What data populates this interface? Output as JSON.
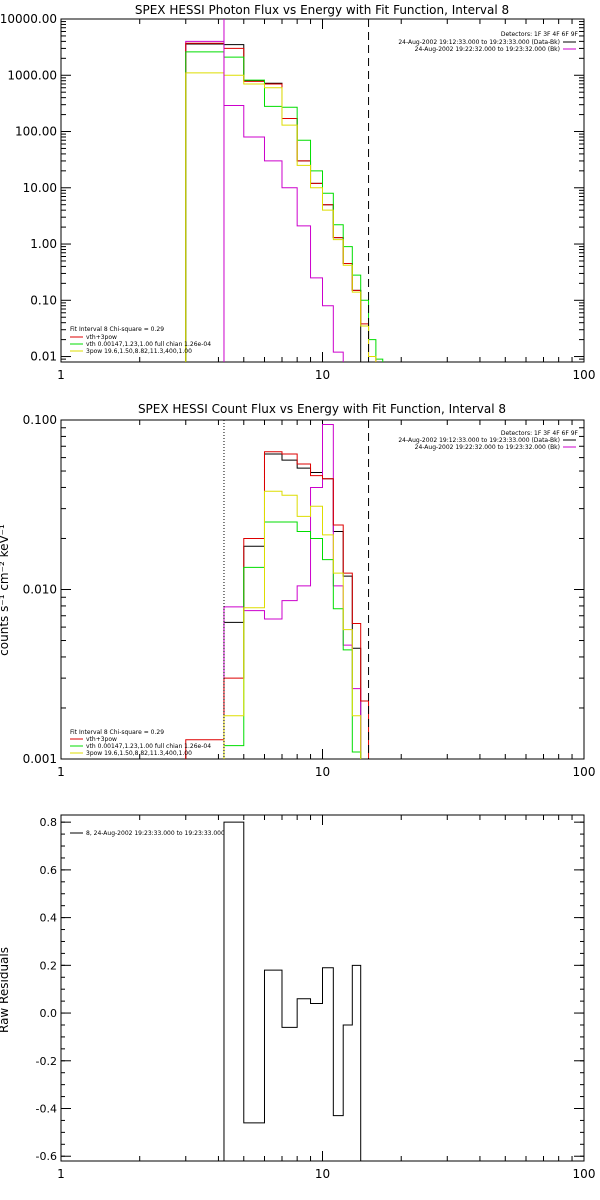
{
  "chart_data": [
    {
      "type": "line",
      "title": "SPEX HESSI Photon Flux vs Energy with Fit Function, Interval 8",
      "xlabel": "",
      "ylabel": "",
      "xscale": "log",
      "yscale": "log",
      "xlim": [
        1,
        100
      ],
      "ylim": [
        0.008,
        10000
      ],
      "xticks": [
        1,
        10,
        100
      ],
      "xticklabels": [
        "1",
        "10",
        "100"
      ],
      "yticks": [
        0.01,
        0.1,
        1,
        10,
        100,
        1000,
        10000
      ],
      "yticklabels": [
        "0.01",
        "0.10",
        "1.00",
        "10.00",
        "100.00",
        "1000.00",
        "10000.00"
      ],
      "vlines": [
        {
          "x": 4.2,
          "style": "solid",
          "color": "#cc00cc"
        },
        {
          "x": 15,
          "style": "dashed",
          "color": "#000000"
        }
      ],
      "legend_topright": [
        "Detectors: 1F 3F 4F 6F 9F",
        "24-Aug-2002 19:12:33.000 to 19:23:33.000 (Data-Bk)",
        "24-Aug-2002 19:22:32.000 to 19:23:32.000 (Bk)"
      ],
      "legend_topright_colors": [
        "",
        "#000000",
        "#cc00cc"
      ],
      "legend_bottomleft": [
        "Fit Interval 8   Chi-square = 0.29",
        "vth+3pow",
        "vth 0.00147,1.23,1.00  full chian 1.26e-04",
        "3pow 19.6,1.50,8.82,11.3,400,1.00"
      ],
      "legend_bottomleft_colors": [
        "",
        "#dd0000",
        "#00dd00",
        "#dddd00"
      ],
      "edges": [
        3,
        4.2,
        5,
        6,
        7,
        8,
        9,
        10,
        11,
        12,
        13,
        14,
        15,
        16,
        17
      ],
      "series": [
        {
          "color": "#000000",
          "values": [
            3600,
            3500,
            800,
            720,
            170,
            30,
            12,
            5,
            1.3,
            0.45,
            0.15
          ]
        },
        {
          "color": "#cc00cc",
          "values": [
            4000,
            290,
            80,
            30,
            10,
            2.1,
            0.25,
            0.08,
            0.012
          ]
        },
        {
          "color": "#dd0000",
          "values": [
            3700,
            3000,
            780,
            700,
            170,
            30,
            12,
            5,
            1.3,
            0.45,
            0.15,
            0.038,
            0.01
          ]
        },
        {
          "color": "#00dd00",
          "values": [
            2600,
            2100,
            820,
            280,
            270,
            70,
            20,
            8,
            2.2,
            0.9,
            0.28,
            0.1,
            0.02,
            0.009
          ]
        },
        {
          "color": "#dddd00",
          "values": [
            1100,
            1000,
            700,
            600,
            130,
            25,
            10,
            4,
            1.2,
            0.42,
            0.14,
            0.035,
            0.01
          ]
        }
      ]
    },
    {
      "type": "line",
      "title": "SPEX HESSI Count Flux vs Energy with Fit Function, Interval 8",
      "xlabel": "",
      "ylabel": "counts s⁻¹ cm⁻² keV⁻¹",
      "xscale": "log",
      "yscale": "log",
      "xlim": [
        1,
        100
      ],
      "ylim": [
        0.001,
        0.1
      ],
      "xticks": [
        1,
        10,
        100
      ],
      "xticklabels": [
        "1",
        "10",
        "100"
      ],
      "yticks": [
        0.001,
        0.01,
        0.1
      ],
      "yticklabels": [
        "0.001",
        "0.010",
        "0.100"
      ],
      "vlines": [
        {
          "x": 4.2,
          "style": "dotted",
          "color": "#000000"
        },
        {
          "x": 15,
          "style": "dashed",
          "color": "#000000"
        }
      ],
      "legend_topright": [
        "Detectors: 1F 3F 4F 6F 9F",
        "24-Aug-2002 19:12:33.000 to 19:23:33.000 (Data-Bk)",
        "24-Aug-2002 19:22:32.000 to 19:23:32.000 (Bk)"
      ],
      "legend_topright_colors": [
        "",
        "#000000",
        "#cc00cc"
      ],
      "legend_bottomleft": [
        "Fit Interval 8   Chi-square = 0.29",
        "vth+3pow",
        "vth 0.00147,1.23,1.00  full chian 1.26e-04",
        "3pow 19.6,1.50,8.82,11.3,400,1.00"
      ],
      "legend_bottomleft_colors": [
        "",
        "#dd0000",
        "#00dd00",
        "#dddd00"
      ],
      "edges": [
        3,
        4.2,
        5,
        6,
        7,
        8,
        9,
        10,
        11,
        12,
        13,
        14,
        15,
        16,
        17
      ],
      "series": [
        {
          "color": "#000000",
          "startIndex": 1,
          "values": [
            0.0064,
            0.018,
            0.063,
            0.058,
            0.052,
            0.049,
            0.045,
            0.022,
            0.012,
            0.0045
          ]
        },
        {
          "color": "#cc00cc",
          "startIndex": 1,
          "values": [
            0.0079,
            0.0075,
            0.0067,
            0.0086,
            0.0105,
            0.04,
            0.094,
            0.0105,
            0.0047,
            0.0026
          ]
        },
        {
          "color": "#dd0000",
          "startIndex": 0,
          "values": [
            0.0013,
            0.003,
            0.02,
            0.065,
            0.063,
            0.055,
            0.047,
            0.045,
            0.024,
            0.0125,
            0.0063,
            0.0022
          ]
        },
        {
          "color": "#00dd00",
          "startIndex": 1,
          "values": [
            0.0012,
            0.0135,
            0.025,
            0.025,
            0.022,
            0.02,
            0.015,
            0.0077,
            0.0044,
            0.0011
          ]
        },
        {
          "color": "#dddd00",
          "startIndex": 1,
          "values": [
            0.0018,
            0.0078,
            0.038,
            0.036,
            0.027,
            0.031,
            0.021,
            0.0125,
            0.0058,
            0.0018
          ]
        }
      ]
    },
    {
      "type": "line",
      "title": "",
      "xlabel": "",
      "ylabel": "Raw Residuals",
      "xscale": "log",
      "yscale": "linear",
      "xlim": [
        1,
        100
      ],
      "ylim": [
        -0.62,
        0.83
      ],
      "xticks": [
        1,
        10,
        100
      ],
      "xticklabels": [
        "1",
        "10",
        "100"
      ],
      "yticks": [
        -0.6,
        -0.4,
        -0.2,
        0.0,
        0.2,
        0.4,
        0.6,
        0.8
      ],
      "yticklabels": [
        "-0.6",
        "-0.4",
        "-0.2",
        "0.0",
        "0.2",
        "0.4",
        "0.6",
        "0.8"
      ],
      "legend": "8, 24-Aug-2002 19:23:33.000 to 19:23:33.000",
      "edges": [
        4.2,
        5,
        6,
        7,
        8,
        9,
        10,
        11,
        12,
        13,
        14,
        15
      ],
      "series": [
        {
          "color": "#000000",
          "values": [
            0.8,
            -0.46,
            0.18,
            -0.06,
            0.06,
            0.04,
            0.19,
            -0.43,
            -0.05,
            0.2
          ]
        }
      ]
    }
  ]
}
